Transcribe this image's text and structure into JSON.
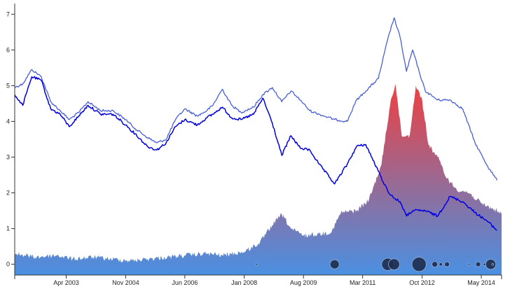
{
  "chart_data": {
    "type": "line",
    "title": "",
    "xlabel": "",
    "ylabel": "",
    "xlim": [
      "2001-11-15",
      "2014-11-15"
    ],
    "ylim": [
      -0.3,
      7.3
    ],
    "grid": false,
    "legend": "none",
    "y_ticks": [
      0,
      1,
      2,
      3,
      4,
      5,
      6,
      7
    ],
    "x_ticks": [
      {
        "date": "2003-04-01",
        "label": "Apr 2003"
      },
      {
        "date": "2004-11-01",
        "label": "Nov 2004"
      },
      {
        "date": "2006-06-01",
        "label": "Jun 2006"
      },
      {
        "date": "2008-01-01",
        "label": "Jan 2008"
      },
      {
        "date": "2009-08-01",
        "label": "Aug 2009"
      },
      {
        "date": "2011-03-01",
        "label": "Mar 2011"
      },
      {
        "date": "2012-10-01",
        "label": "Oct 2012"
      },
      {
        "date": "2014-05-01",
        "label": "May 2014"
      }
    ],
    "series": [
      {
        "style": "line",
        "color": "#4a5fd6",
        "points": [
          [
            "2001-11-15",
            4.95
          ],
          [
            "2002-02-01",
            5.05
          ],
          [
            "2002-05-01",
            5.45
          ],
          [
            "2002-08-01",
            5.25
          ],
          [
            "2002-11-01",
            4.55
          ],
          [
            "2003-02-01",
            4.3
          ],
          [
            "2003-05-01",
            4.05
          ],
          [
            "2003-08-01",
            4.25
          ],
          [
            "2003-11-01",
            4.55
          ],
          [
            "2004-03-01",
            4.3
          ],
          [
            "2004-07-01",
            4.3
          ],
          [
            "2004-11-01",
            4.05
          ],
          [
            "2005-02-01",
            3.8
          ],
          [
            "2005-06-01",
            3.55
          ],
          [
            "2005-09-01",
            3.4
          ],
          [
            "2005-12-01",
            3.5
          ],
          [
            "2006-03-01",
            4.05
          ],
          [
            "2006-06-01",
            4.35
          ],
          [
            "2006-10-01",
            4.15
          ],
          [
            "2007-01-01",
            4.3
          ],
          [
            "2007-03-01",
            4.45
          ],
          [
            "2007-06-01",
            4.9
          ],
          [
            "2007-09-01",
            4.45
          ],
          [
            "2007-12-01",
            4.25
          ],
          [
            "2008-04-01",
            4.4
          ],
          [
            "2008-07-01",
            4.75
          ],
          [
            "2008-10-01",
            4.95
          ],
          [
            "2009-01-01",
            4.55
          ],
          [
            "2009-04-01",
            4.85
          ],
          [
            "2009-07-01",
            4.6
          ],
          [
            "2009-10-01",
            4.3
          ],
          [
            "2010-01-01",
            4.2
          ],
          [
            "2010-06-01",
            4.05
          ],
          [
            "2010-10-01",
            4.0
          ],
          [
            "2011-01-01",
            4.6
          ],
          [
            "2011-04-01",
            4.85
          ],
          [
            "2011-08-01",
            5.2
          ],
          [
            "2011-11-01",
            6.3
          ],
          [
            "2012-01-01",
            6.9
          ],
          [
            "2012-03-01",
            6.35
          ],
          [
            "2012-05-01",
            5.4
          ],
          [
            "2012-07-01",
            6.0
          ],
          [
            "2012-09-01",
            5.4
          ],
          [
            "2012-11-01",
            4.85
          ],
          [
            "2013-03-01",
            4.6
          ],
          [
            "2013-07-01",
            4.6
          ],
          [
            "2013-11-01",
            4.35
          ],
          [
            "2014-03-01",
            3.4
          ],
          [
            "2014-07-01",
            2.75
          ],
          [
            "2014-10-01",
            2.35
          ]
        ]
      },
      {
        "style": "line",
        "color": "#0000e0",
        "points": [
          [
            "2001-11-15",
            4.75
          ],
          [
            "2002-02-01",
            4.45
          ],
          [
            "2002-05-01",
            5.25
          ],
          [
            "2002-08-01",
            5.15
          ],
          [
            "2002-11-01",
            4.35
          ],
          [
            "2003-02-01",
            4.2
          ],
          [
            "2003-05-01",
            3.85
          ],
          [
            "2003-08-01",
            4.15
          ],
          [
            "2003-11-01",
            4.45
          ],
          [
            "2004-03-01",
            4.2
          ],
          [
            "2004-07-01",
            4.2
          ],
          [
            "2004-11-01",
            3.9
          ],
          [
            "2005-02-01",
            3.65
          ],
          [
            "2005-06-01",
            3.3
          ],
          [
            "2005-09-01",
            3.2
          ],
          [
            "2005-12-01",
            3.4
          ],
          [
            "2006-03-01",
            3.85
          ],
          [
            "2006-06-01",
            4.05
          ],
          [
            "2006-10-01",
            3.9
          ],
          [
            "2007-01-01",
            4.1
          ],
          [
            "2007-03-01",
            4.2
          ],
          [
            "2007-06-01",
            4.4
          ],
          [
            "2007-09-01",
            4.1
          ],
          [
            "2007-12-01",
            4.05
          ],
          [
            "2008-04-01",
            4.2
          ],
          [
            "2008-07-01",
            4.65
          ],
          [
            "2008-10-01",
            3.95
          ],
          [
            "2009-01-01",
            3.05
          ],
          [
            "2009-04-01",
            3.6
          ],
          [
            "2009-07-01",
            3.25
          ],
          [
            "2009-10-01",
            3.2
          ],
          [
            "2010-01-01",
            2.8
          ],
          [
            "2010-06-01",
            2.25
          ],
          [
            "2010-10-01",
            2.8
          ],
          [
            "2011-01-01",
            3.3
          ],
          [
            "2011-04-01",
            3.35
          ],
          [
            "2011-08-01",
            2.6
          ],
          [
            "2011-11-01",
            2.05
          ],
          [
            "2012-01-01",
            1.85
          ],
          [
            "2012-03-01",
            1.75
          ],
          [
            "2012-05-01",
            1.35
          ],
          [
            "2012-07-01",
            1.5
          ],
          [
            "2012-09-01",
            1.5
          ],
          [
            "2012-11-01",
            1.5
          ],
          [
            "2013-03-01",
            1.35
          ],
          [
            "2013-07-01",
            1.9
          ],
          [
            "2013-11-01",
            1.75
          ],
          [
            "2014-03-01",
            1.45
          ],
          [
            "2014-07-01",
            1.2
          ],
          [
            "2014-10-01",
            0.95
          ]
        ]
      },
      {
        "style": "area",
        "gradient": [
          "#4a90e2",
          "#ee4040"
        ],
        "points": [
          [
            "2001-11-15",
            0.3
          ],
          [
            "2002-06-01",
            0.2
          ],
          [
            "2003-01-01",
            0.25
          ],
          [
            "2003-06-01",
            0.15
          ],
          [
            "2004-01-01",
            0.2
          ],
          [
            "2004-06-01",
            0.15
          ],
          [
            "2005-01-01",
            0.1
          ],
          [
            "2005-06-01",
            0.15
          ],
          [
            "2006-01-01",
            0.2
          ],
          [
            "2006-06-01",
            0.25
          ],
          [
            "2007-01-01",
            0.3
          ],
          [
            "2007-06-01",
            0.25
          ],
          [
            "2008-01-01",
            0.35
          ],
          [
            "2008-06-01",
            0.6
          ],
          [
            "2008-10-01",
            1.1
          ],
          [
            "2009-01-01",
            1.4
          ],
          [
            "2009-04-01",
            1.0
          ],
          [
            "2009-08-01",
            0.8
          ],
          [
            "2010-01-01",
            0.85
          ],
          [
            "2010-05-01",
            0.9
          ],
          [
            "2010-08-01",
            1.45
          ],
          [
            "2011-01-01",
            1.5
          ],
          [
            "2011-05-01",
            1.8
          ],
          [
            "2011-09-01",
            2.8
          ],
          [
            "2011-12-01",
            4.6
          ],
          [
            "2012-01-15",
            5.05
          ],
          [
            "2012-03-15",
            3.6
          ],
          [
            "2012-06-01",
            3.6
          ],
          [
            "2012-08-01",
            5.0
          ],
          [
            "2012-10-01",
            4.6
          ],
          [
            "2012-12-01",
            3.35
          ],
          [
            "2013-03-01",
            3.0
          ],
          [
            "2013-06-01",
            2.4
          ],
          [
            "2013-09-01",
            2.1
          ],
          [
            "2014-01-01",
            2.0
          ],
          [
            "2014-05-01",
            1.7
          ],
          [
            "2014-10-01",
            1.5
          ],
          [
            "2014-11-15",
            1.4
          ]
        ]
      }
    ],
    "events": [
      {
        "date": "2008-05-01",
        "size": 1.0
      },
      {
        "date": "2010-06-01",
        "size": 4.5
      },
      {
        "date": "2011-11-01",
        "size": 6.0
      },
      {
        "date": "2012-01-01",
        "size": 5.5
      },
      {
        "date": "2012-09-01",
        "size": 7.0
      },
      {
        "date": "2013-02-01",
        "size": 2.8
      },
      {
        "date": "2013-04-01",
        "size": 1.6
      },
      {
        "date": "2013-06-01",
        "size": 2.4
      },
      {
        "date": "2014-01-01",
        "size": 1.0
      },
      {
        "date": "2014-04-01",
        "size": 2.4
      },
      {
        "date": "2014-06-01",
        "size": 1.2
      },
      {
        "date": "2014-08-01",
        "size": 5.0
      },
      {
        "date": "2014-08-20",
        "size": 1.0
      }
    ],
    "event_style": {
      "fill": "#1f2f52",
      "stroke": "#9bb4d6"
    }
  }
}
